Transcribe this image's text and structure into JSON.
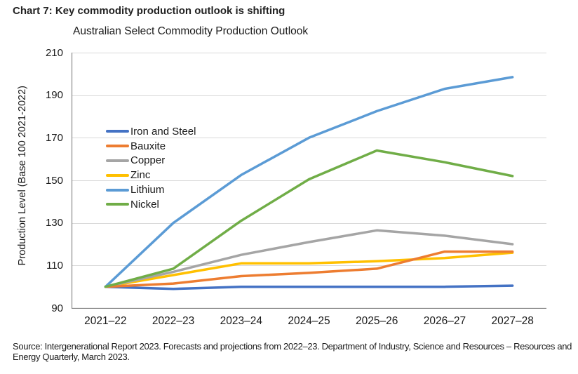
{
  "heading": "Chart 7: Key commodity production outlook is shifting",
  "source": "Source: Intergenerational Report 2023. Forecasts and projections from 2022–23. Department of Industry, Science and Resources – Resources and Energy Quarterly, March 2023.",
  "colors": {
    "grid": "#d9d9d9",
    "axis": "#808080",
    "text": "#1a1a1a"
  },
  "chart_data": {
    "type": "line",
    "title": "Australian Select Commodity Production Outlook",
    "ylabel": "Production Level (Base 100 2021-2022)",
    "xlabel": "",
    "categories": [
      "2021–22",
      "2022–23",
      "2023–24",
      "2024–25",
      "2025–26",
      "2026–27",
      "2027–28"
    ],
    "ylim": [
      90,
      210
    ],
    "yticks": [
      210,
      190,
      170,
      150,
      130,
      110,
      90
    ],
    "grid": true,
    "legend_position": "inside-top-left",
    "series": [
      {
        "name": "Iron and Steel",
        "color": "#4472C4",
        "values": [
          100,
          99,
          100,
          100,
          100,
          100,
          100.5
        ]
      },
      {
        "name": "Bauxite",
        "color": "#ED7D31",
        "values": [
          100,
          101.5,
          105,
          106.5,
          108.5,
          116.5,
          116.5
        ]
      },
      {
        "name": "Copper",
        "color": "#A5A5A5",
        "values": [
          100,
          107,
          115,
          121,
          126.5,
          124,
          120
        ]
      },
      {
        "name": "Zinc",
        "color": "#FFC000",
        "values": [
          100,
          105.5,
          111,
          111,
          112,
          113.5,
          116
        ]
      },
      {
        "name": "Lithium",
        "color": "#5B9BD5",
        "values": [
          100,
          130,
          152.5,
          170,
          182.5,
          193,
          198.5
        ]
      },
      {
        "name": "Nickel",
        "color": "#70AD47",
        "values": [
          100,
          108.5,
          131,
          150.5,
          164,
          158.5,
          152
        ]
      }
    ],
    "draw_order": [
      "Iron and Steel",
      "Zinc",
      "Copper",
      "Bauxite",
      "Lithium",
      "Nickel"
    ]
  }
}
